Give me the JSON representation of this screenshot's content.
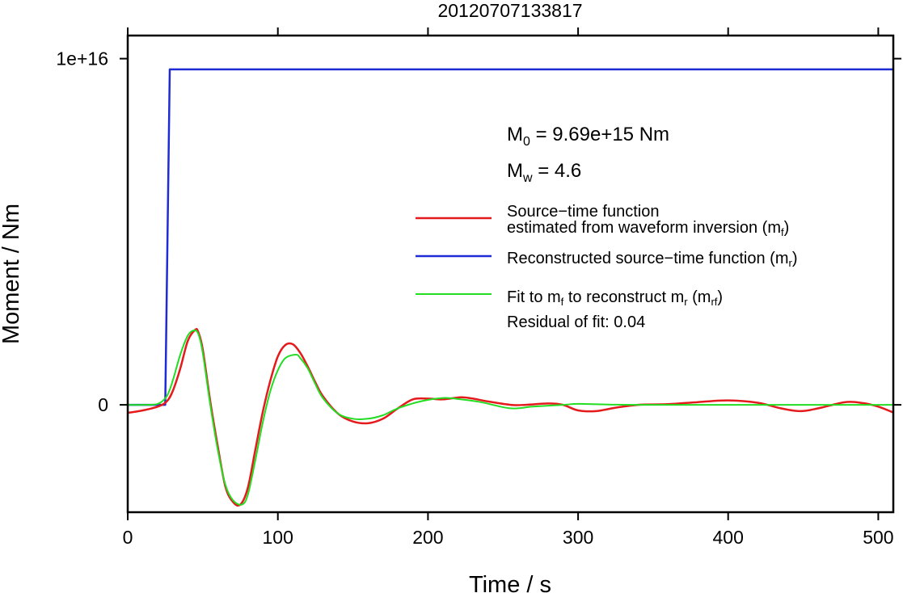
{
  "chart_data": {
    "type": "line",
    "title": "20120707133817",
    "xlabel": "Time / s",
    "ylabel": "Moment / Nm",
    "xlim": [
      0,
      510
    ],
    "ylim": [
      -3100000000000000.0,
      1.0667e+16
    ],
    "x_ticks": [
      0,
      100,
      200,
      300,
      400,
      500
    ],
    "x_tick_labels": [
      "0",
      "100",
      "200",
      "300",
      "400",
      "500"
    ],
    "y_ticks": [
      0,
      1e+16
    ],
    "y_tick_labels": [
      "0",
      "1e+16"
    ],
    "grid": false,
    "legend_position": "right",
    "colors": {
      "mf": "#e41a1c",
      "mr": "#1f2bd4",
      "mrf": "#22dd22"
    },
    "annotations": {
      "m0_prefix": "M",
      "m0_sub": "0",
      "m0_value": " = 9.69e+15 Nm",
      "mw_prefix": "M",
      "mw_sub": "w",
      "mw_value": " = 4.6",
      "residual": "Residual of fit: 0.04"
    },
    "legend": {
      "mf_line1": "Source−time function",
      "mf_line2": "estimated from waveform inversion (m",
      "mf_sub": "f",
      "mf_close": ")",
      "mr_text": "Reconstructed source−time function (m",
      "mr_sub": "r",
      "mr_close": ")",
      "mrf_text1": "Fit to m",
      "mrf_sub1": "f",
      "mrf_text2": " to reconstruct m",
      "mrf_sub2": "r",
      "mrf_text3": " (m",
      "mrf_sub3": "rf",
      "mrf_close": ")"
    },
    "series": [
      {
        "key": "mf",
        "x": [
          0,
          10,
          20,
          26,
          30,
          35,
          40,
          45,
          47,
          50,
          55,
          60,
          65,
          70,
          75,
          80,
          85,
          90,
          95,
          100,
          105,
          110,
          115,
          120,
          125,
          130,
          140,
          150,
          160,
          170,
          180,
          190,
          200,
          210,
          222,
          230,
          240,
          255,
          265,
          280,
          290,
          300,
          312,
          325,
          340,
          360,
          380,
          400,
          420,
          435,
          448,
          460,
          478,
          490,
          500,
          510
        ],
        "y": [
          -230000000000000.0,
          -160000000000000.0,
          -50000000000000.0,
          100000000000000.0,
          400000000000000.0,
          1050000000000000.0,
          1850000000000000.0,
          2170000000000000.0,
          2100000000000000.0,
          1600000000000000.0,
          100000000000000.0,
          -1200000000000000.0,
          -2350000000000000.0,
          -2800000000000000.0,
          -2880000000000000.0,
          -2400000000000000.0,
          -1300000000000000.0,
          -200000000000000.0,
          700000000000000.0,
          1400000000000000.0,
          1730000000000000.0,
          1750000000000000.0,
          1500000000000000.0,
          1100000000000000.0,
          650000000000000.0,
          250000000000000.0,
          -250000000000000.0,
          -480000000000000.0,
          -530000000000000.0,
          -400000000000000.0,
          -100000000000000.0,
          160000000000000.0,
          180000000000000.0,
          160000000000000.0,
          220000000000000.0,
          180000000000000.0,
          100000000000000.0,
          0,
          0,
          40000000000000.0,
          0,
          -160000000000000.0,
          -180000000000000.0,
          -80000000000000.0,
          0,
          20000000000000.0,
          80000000000000.0,
          130000000000000.0,
          60000000000000.0,
          -100000000000000.0,
          -180000000000000.0,
          -100000000000000.0,
          80000000000000.0,
          50000000000000.0,
          -50000000000000.0,
          -220000000000000.0
        ]
      },
      {
        "key": "mr",
        "x": [
          0,
          25,
          28,
          510
        ],
        "y": [
          0,
          0,
          9690000000000000.0,
          9690000000000000.0
        ]
      },
      {
        "key": "mrf",
        "x": [
          0,
          10,
          20,
          26,
          30,
          35,
          40,
          44,
          47,
          50,
          55,
          60,
          65,
          70,
          76,
          80,
          85,
          90,
          95,
          100,
          105,
          112,
          115,
          120,
          125,
          130,
          140,
          150,
          160,
          170,
          180,
          195,
          210,
          220,
          235,
          255,
          270,
          290,
          300,
          320,
          350,
          400,
          450,
          510
        ],
        "y": [
          0,
          0,
          30000000000000.0,
          250000000000000.0,
          700000000000000.0,
          1450000000000000.0,
          2000000000000000.0,
          2150000000000000.0,
          2050000000000000.0,
          1500000000000000.0,
          0,
          -1300000000000000.0,
          -2300000000000000.0,
          -2750000000000000.0,
          -2880000000000000.0,
          -2600000000000000.0,
          -1600000000000000.0,
          -500000000000000.0,
          400000000000000.0,
          1000000000000000.0,
          1350000000000000.0,
          1450000000000000.0,
          1350000000000000.0,
          1050000000000000.0,
          600000000000000.0,
          200000000000000.0,
          -250000000000000.0,
          -400000000000000.0,
          -400000000000000.0,
          -300000000000000.0,
          -100000000000000.0,
          100000000000000.0,
          200000000000000.0,
          170000000000000.0,
          80000000000000.0,
          -100000000000000.0,
          -50000000000000.0,
          0,
          30000000000000.0,
          10000000000000.0,
          0,
          0,
          0,
          0
        ]
      }
    ]
  }
}
